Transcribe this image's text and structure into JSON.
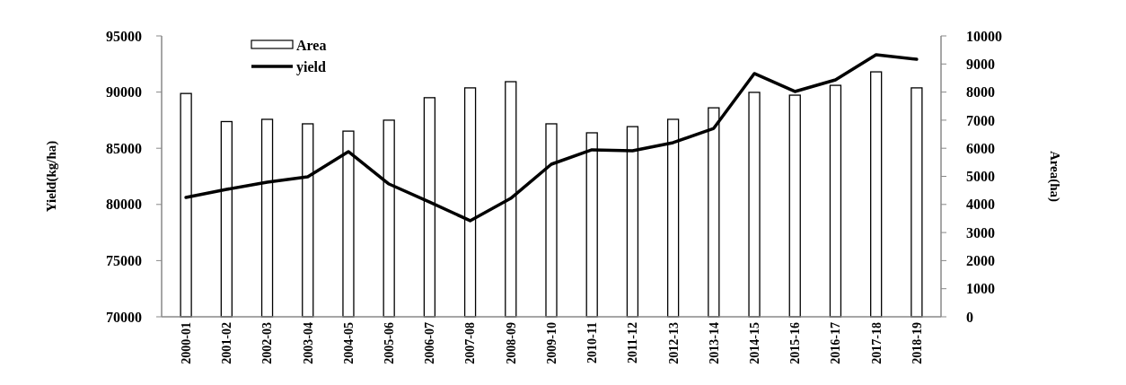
{
  "chart_data": {
    "type": "bar",
    "ylabel": "Yield(kg/ha)",
    "y2label": "Area(ha)",
    "categories": [
      "2000-01",
      "2001-02",
      "2002-03",
      "2003-04",
      "2004-05",
      "2005-06",
      "2006-07",
      "2007-08",
      "2008-09",
      "2009-10",
      "2010-11",
      "2011-12",
      "2012-13",
      "2013-14",
      "2014-15",
      "2015-16",
      "2016-17",
      "2017-18",
      "2018-19"
    ],
    "series": [
      {
        "name": "Area",
        "axis": "y2",
        "color": "#ffffff",
        "values": [
          7950,
          6950,
          7030,
          6870,
          6610,
          7000,
          7800,
          8150,
          8370,
          6870,
          6550,
          6770,
          7030,
          7440,
          7990,
          7890,
          8240,
          8720,
          8150
        ]
      },
      {
        "name": "yield",
        "type": "line",
        "color": "#000000",
        "values": [
          80620,
          81340,
          81980,
          82460,
          84700,
          81820,
          80220,
          78550,
          80540,
          83580,
          84860,
          84780,
          85500,
          86770,
          91650,
          90050,
          91090,
          93320,
          92920
        ]
      }
    ],
    "ylim": [
      70000,
      95000
    ],
    "yticks": [
      70000,
      75000,
      80000,
      85000,
      90000,
      95000
    ],
    "y2lim": [
      0,
      10000
    ],
    "y2ticks": [
      0,
      1000,
      2000,
      3000,
      4000,
      5000,
      6000,
      7000,
      8000,
      9000,
      10000
    ],
    "legend": "top left",
    "grid": false,
    "marker": "none",
    "line_style": "solid"
  }
}
